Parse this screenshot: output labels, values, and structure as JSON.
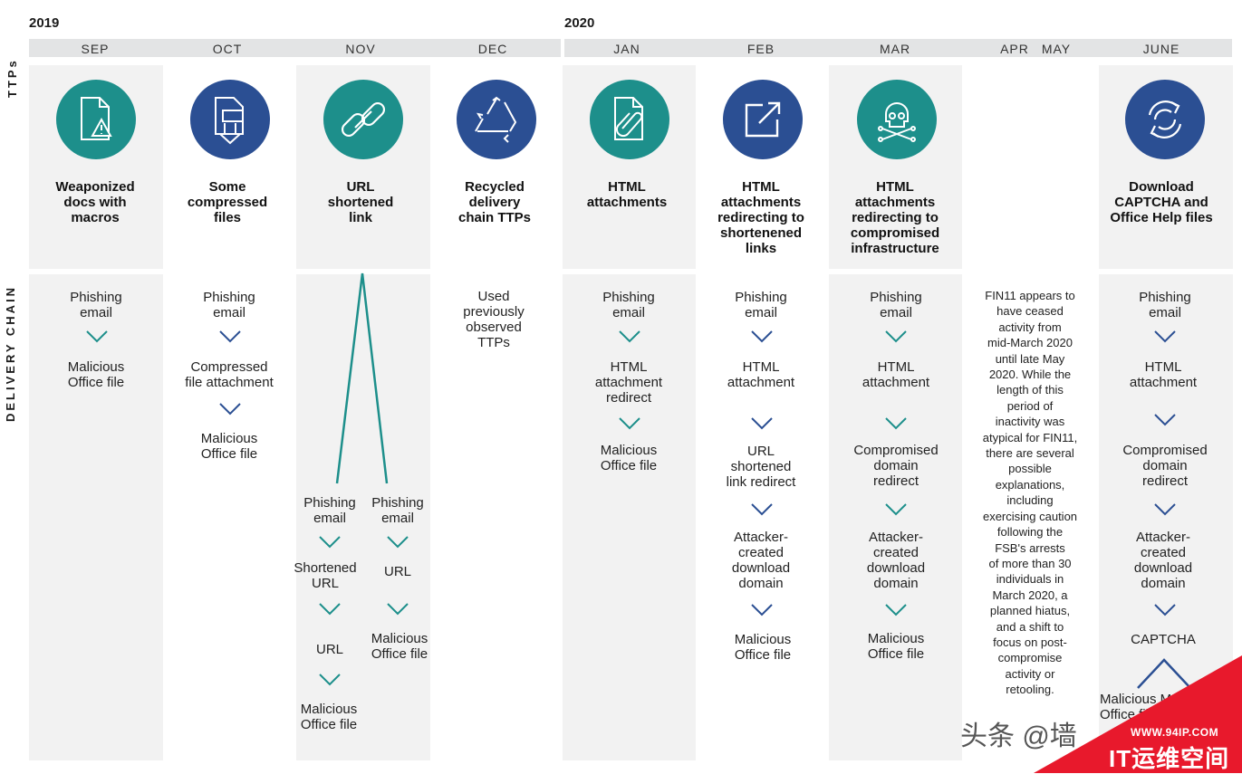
{
  "years": {
    "y2019": "2019",
    "y2020": "2020"
  },
  "months": [
    "SEP",
    "OCT",
    "NOV",
    "DEC",
    "JAN",
    "FEB",
    "MAR",
    "APR",
    "MAY",
    "JUNE"
  ],
  "side_labels": {
    "ttps": "TTPs",
    "delivery_chain": "DELIVERY CHAIN"
  },
  "ttps": [
    {
      "l1": "Weaponized",
      "l2": "docs with",
      "l3": "macros",
      "icon": "document-warning-icon",
      "color": "#1d8f8b"
    },
    {
      "l1": "Some",
      "l2": "compressed",
      "l3": "files",
      "icon": "compressed-download-icon",
      "color": "#2b4f93"
    },
    {
      "l1": "URL",
      "l2": "shortened",
      "l3": "link",
      "icon": "chain-link-icon",
      "color": "#1d8f8b"
    },
    {
      "l1": "Recycled",
      "l2": "delivery",
      "l3": "chain TTPs",
      "icon": "recycle-icon",
      "color": "#2b4f93"
    },
    {
      "l1": "HTML",
      "l2": "attachments",
      "icon": "paperclip-document-icon",
      "color": "#1d8f8b"
    },
    {
      "l1": "HTML",
      "l2": "attachments",
      "l3": "redirecting to",
      "l4": "shortenened",
      "l5": "links",
      "icon": "external-link-icon",
      "color": "#2b4f93"
    },
    {
      "l1": "HTML",
      "l2": "attachments",
      "l3": "redirecting to",
      "l4": "compromised",
      "l5": "infrastructure",
      "icon": "skull-crossbones-icon",
      "color": "#1d8f8b"
    },
    {
      "l1": "Download",
      "l2": "CAPTCHA and",
      "l3": "Office Help files",
      "icon": "refresh-cycle-icon",
      "color": "#2b4f93"
    }
  ],
  "chains": {
    "sep": [
      "Phishing",
      "email",
      "Malicious",
      "Office file"
    ],
    "oct": [
      "Phishing",
      "email",
      "Compressed",
      "file attachment",
      "Malicious",
      "Office file"
    ],
    "nov_left": [
      "Phishing",
      "email",
      "Shortened",
      "URL",
      "URL",
      "Malicious",
      "Office file"
    ],
    "nov_right": [
      "Phishing",
      "email",
      "URL",
      "Malicious",
      "Office file"
    ],
    "dec": [
      "Used",
      "previously",
      "observed",
      "TTPs"
    ],
    "jan": [
      "Phishing",
      "email",
      "HTML",
      "attachment",
      "redirect",
      "Malicious",
      "Office file"
    ],
    "feb": [
      "Phishing",
      "email",
      "HTML",
      "attachment",
      "URL",
      "shortened",
      "link redirect",
      "Attacker-",
      "created",
      "download",
      "domain",
      "Malicious",
      "Office file"
    ],
    "mar": [
      "Phishing",
      "email",
      "HTML",
      "attachment",
      "Compromised",
      "domain",
      "redirect",
      "Attacker-",
      "created",
      "download",
      "domain",
      "Malicious",
      "Office file"
    ],
    "june": [
      "Phishing",
      "email",
      "HTML",
      "attachment",
      "Compromised",
      "domain",
      "redirect",
      "Attacker-",
      "created",
      "download",
      "domain",
      "CAPTCHA",
      "Malicious M",
      "Office fil"
    ]
  },
  "apr_may_note": [
    "FIN11 appears to",
    "have ceased",
    "activity from",
    "mid-March 2020",
    "until late May",
    "2020. While the",
    "length of this",
    "period of",
    "inactivity was",
    "atypical for FIN11,",
    "there are several",
    "possible",
    "explanations,",
    "including",
    "exercising caution",
    "following the",
    "FSB's arrests",
    "of more than 30",
    "individuals in",
    "March 2020, a",
    "planned hiatus,",
    "and a shift to",
    "focus on post-",
    "compromise",
    "activity or",
    "retooling."
  ],
  "watermark": {
    "left": "头条 @墙",
    "site": "WWW.94IP.COM",
    "brand": "IT运维空间"
  },
  "colors": {
    "teal": "#1d8f8b",
    "blue": "#2b4f93",
    "banner_red": "#e8192c"
  }
}
